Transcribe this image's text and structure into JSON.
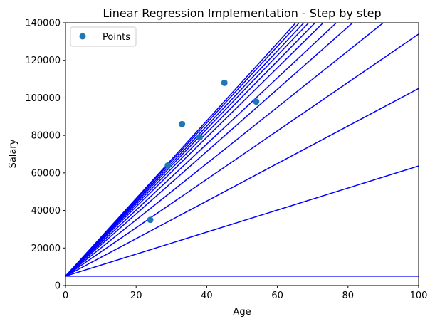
{
  "chart_data": {
    "type": "scatter",
    "title": "Linear Regression Implementation - Step by step",
    "xlabel": "Age",
    "ylabel": "Salary",
    "xlim": [
      0,
      100
    ],
    "ylim": [
      0,
      140000
    ],
    "xticks": [
      0,
      20,
      40,
      60,
      80,
      100
    ],
    "yticks": [
      0,
      20000,
      40000,
      60000,
      80000,
      100000,
      120000,
      140000
    ],
    "grid": false,
    "legend_position": "top-left",
    "legend": [
      "Points"
    ],
    "points": {
      "name": "Points",
      "color": "#1f77b4",
      "x": [
        24,
        29,
        33,
        38,
        45,
        54
      ],
      "y": [
        35000,
        64000,
        86000,
        79000,
        108000,
        98000
      ]
    },
    "regression_lines": {
      "color": "#0000ff",
      "intercept": 5000,
      "slopes": [
        0,
        587,
        1000,
        1290,
        1500,
        1660,
        1760,
        1850,
        1910,
        1960,
        2000,
        2040,
        2070
      ]
    }
  }
}
